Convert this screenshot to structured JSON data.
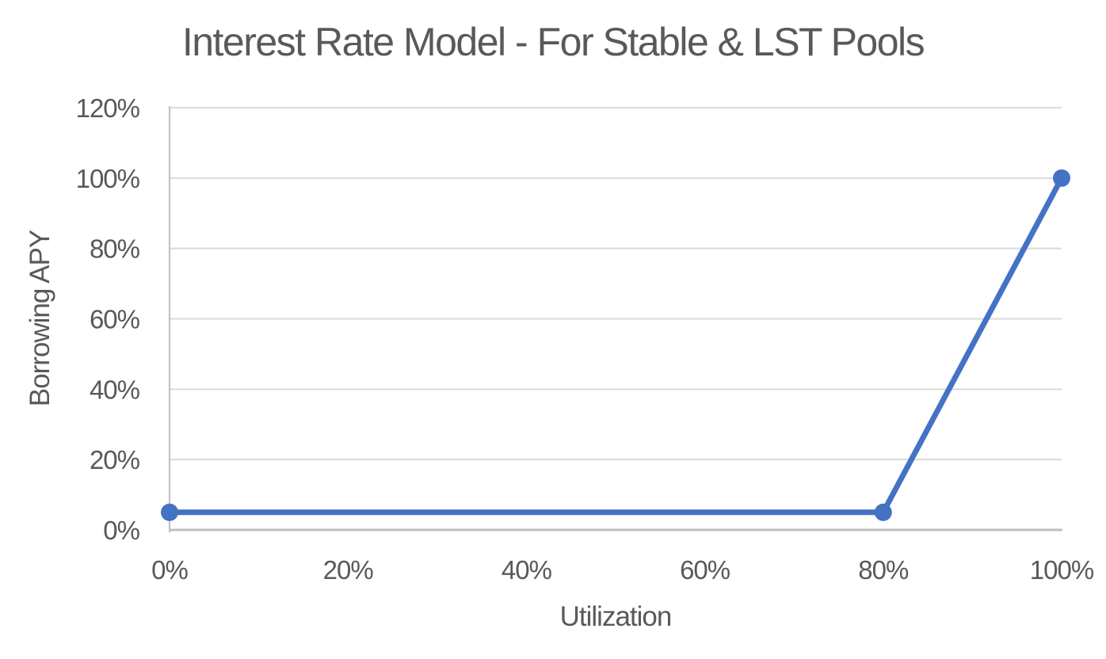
{
  "chart_data": {
    "type": "line",
    "title": "Interest Rate Model - For Stable & LST Pools",
    "xlabel": "Utilization",
    "ylabel": "Borrowing APY",
    "series": [
      {
        "name": "Borrowing APY",
        "x": [
          0,
          80,
          100
        ],
        "y": [
          5,
          5,
          100
        ]
      }
    ],
    "xlim": [
      0,
      100
    ],
    "ylim": [
      0,
      120
    ],
    "x_tick_values": [
      0,
      20,
      40,
      60,
      80,
      100
    ],
    "x_tick_labels": [
      "0%",
      "20%",
      "40%",
      "60%",
      "80%",
      "100%"
    ],
    "y_tick_values": [
      0,
      20,
      40,
      60,
      80,
      100,
      120
    ],
    "y_tick_labels": [
      "0%",
      "20%",
      "40%",
      "60%",
      "80%",
      "100%",
      "120%"
    ],
    "grid": "horizontal",
    "legend": "none",
    "colors": {
      "line": "#4472C4",
      "marker": "#4472C4",
      "gridline": "#D9D9D9",
      "axis": "#BFBFBF",
      "text": "#595959",
      "background": "#FFFFFF"
    }
  }
}
